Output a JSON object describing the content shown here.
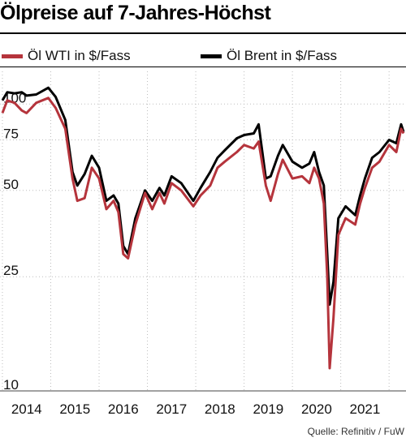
{
  "title": "Ölpreise auf 7-Jahres-Höchst",
  "legend": {
    "wti": "Öl WTI in $/Fass",
    "brent": "Öl Brent in $/Fass"
  },
  "source": "Quelle: Refinitiv / FuW",
  "colors": {
    "wti": "#b5343c",
    "brent": "#000000",
    "grid": "#9a9a9a"
  },
  "chart_data": {
    "type": "line",
    "scale": "log",
    "ylim": [
      10,
      130
    ],
    "xlim": [
      2013.45,
      2021.85
    ],
    "yticks": [
      10,
      25,
      50,
      75,
      100
    ],
    "ytick_labels": [
      "10",
      "25",
      "50",
      "75",
      "100"
    ],
    "xticks": [
      2014,
      2015,
      2016,
      2017,
      2018,
      2019,
      2020,
      2021
    ],
    "xtick_labels": [
      "2014",
      "2015",
      "2016",
      "2017",
      "2018",
      "2019",
      "2020",
      "2021"
    ],
    "legend_position": "top",
    "series": [
      {
        "name": "Öl WTI in $/Fass",
        "color": "#b5343c",
        "points": [
          [
            2013.5,
            93
          ],
          [
            2013.6,
            103
          ],
          [
            2013.75,
            101
          ],
          [
            2013.9,
            95
          ],
          [
            2014.0,
            93
          ],
          [
            2014.2,
            101
          ],
          [
            2014.45,
            105
          ],
          [
            2014.6,
            97
          ],
          [
            2014.8,
            82
          ],
          [
            2014.95,
            55
          ],
          [
            2015.05,
            46
          ],
          [
            2015.2,
            47
          ],
          [
            2015.35,
            60
          ],
          [
            2015.5,
            55
          ],
          [
            2015.65,
            43
          ],
          [
            2015.8,
            46
          ],
          [
            2015.9,
            42
          ],
          [
            2016.0,
            30
          ],
          [
            2016.1,
            29
          ],
          [
            2016.25,
            38
          ],
          [
            2016.45,
            49
          ],
          [
            2016.6,
            43
          ],
          [
            2016.75,
            49
          ],
          [
            2016.85,
            45
          ],
          [
            2017.0,
            53
          ],
          [
            2017.2,
            50
          ],
          [
            2017.45,
            44
          ],
          [
            2017.6,
            48
          ],
          [
            2017.8,
            52
          ],
          [
            2017.95,
            60
          ],
          [
            2018.1,
            63
          ],
          [
            2018.35,
            68
          ],
          [
            2018.5,
            72
          ],
          [
            2018.7,
            70
          ],
          [
            2018.8,
            74
          ],
          [
            2018.95,
            52
          ],
          [
            2019.05,
            46
          ],
          [
            2019.2,
            57
          ],
          [
            2019.3,
            64
          ],
          [
            2019.5,
            55
          ],
          [
            2019.7,
            56
          ],
          [
            2019.85,
            53
          ],
          [
            2019.95,
            60
          ],
          [
            2020.05,
            55
          ],
          [
            2020.15,
            45
          ],
          [
            2020.22,
            25
          ],
          [
            2020.27,
            12
          ],
          [
            2020.35,
            18
          ],
          [
            2020.45,
            35
          ],
          [
            2020.6,
            40
          ],
          [
            2020.8,
            38
          ],
          [
            2020.9,
            45
          ],
          [
            2021.0,
            51
          ],
          [
            2021.15,
            60
          ],
          [
            2021.3,
            63
          ],
          [
            2021.5,
            72
          ],
          [
            2021.65,
            68
          ],
          [
            2021.75,
            82
          ],
          [
            2021.8,
            79
          ]
        ]
      },
      {
        "name": "Öl Brent in $/Fass",
        "color": "#000000",
        "points": [
          [
            2013.5,
            103
          ],
          [
            2013.6,
            110
          ],
          [
            2013.75,
            109
          ],
          [
            2013.9,
            110
          ],
          [
            2014.0,
            107
          ],
          [
            2014.2,
            108
          ],
          [
            2014.45,
            114
          ],
          [
            2014.6,
            106
          ],
          [
            2014.8,
            88
          ],
          [
            2014.95,
            58
          ],
          [
            2015.05,
            52
          ],
          [
            2015.2,
            57
          ],
          [
            2015.35,
            66
          ],
          [
            2015.5,
            60
          ],
          [
            2015.65,
            46
          ],
          [
            2015.8,
            48
          ],
          [
            2015.9,
            45
          ],
          [
            2016.0,
            32
          ],
          [
            2016.1,
            30
          ],
          [
            2016.25,
            40
          ],
          [
            2016.45,
            50
          ],
          [
            2016.6,
            46
          ],
          [
            2016.75,
            51
          ],
          [
            2016.85,
            48
          ],
          [
            2017.0,
            56
          ],
          [
            2017.2,
            53
          ],
          [
            2017.45,
            46
          ],
          [
            2017.6,
            51
          ],
          [
            2017.8,
            58
          ],
          [
            2017.95,
            65
          ],
          [
            2018.1,
            69
          ],
          [
            2018.35,
            76
          ],
          [
            2018.5,
            78
          ],
          [
            2018.7,
            79
          ],
          [
            2018.8,
            85
          ],
          [
            2018.95,
            55
          ],
          [
            2019.05,
            56
          ],
          [
            2019.2,
            66
          ],
          [
            2019.3,
            72
          ],
          [
            2019.5,
            63
          ],
          [
            2019.7,
            60
          ],
          [
            2019.85,
            62
          ],
          [
            2019.95,
            68
          ],
          [
            2020.05,
            58
          ],
          [
            2020.15,
            52
          ],
          [
            2020.22,
            30
          ],
          [
            2020.27,
            20
          ],
          [
            2020.35,
            24
          ],
          [
            2020.45,
            40
          ],
          [
            2020.6,
            44
          ],
          [
            2020.8,
            41
          ],
          [
            2020.9,
            48
          ],
          [
            2021.0,
            55
          ],
          [
            2021.15,
            65
          ],
          [
            2021.3,
            68
          ],
          [
            2021.5,
            75
          ],
          [
            2021.65,
            73
          ],
          [
            2021.75,
            85
          ],
          [
            2021.8,
            80
          ]
        ]
      }
    ]
  }
}
